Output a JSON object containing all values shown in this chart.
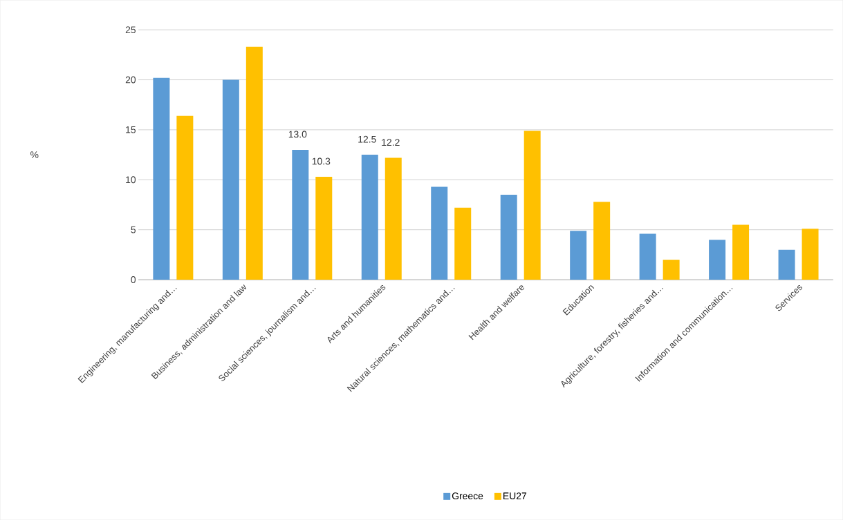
{
  "chart_data": {
    "type": "bar",
    "ylabel": "%",
    "categories": [
      "Engineering, manufacturing and…",
      "Business, administration and law",
      "Social sciences, journalism and…",
      "Arts and humanities",
      "Natural sciences, mathematics and…",
      "Health and welfare",
      "Education",
      "Agriculture, forestry, fisheries and…",
      "Information and communication…",
      "Services"
    ],
    "series": [
      {
        "name": "Greece",
        "color": "#5b9bd5",
        "values": [
          20.2,
          20.0,
          13.0,
          12.5,
          9.3,
          8.5,
          4.9,
          4.6,
          4.0,
          3.0
        ],
        "value_labels": [
          null,
          null,
          "13.0",
          "12.5",
          null,
          null,
          null,
          null,
          null,
          null
        ]
      },
      {
        "name": "EU27",
        "color": "#ffc000",
        "values": [
          16.4,
          23.3,
          10.3,
          12.2,
          7.2,
          14.9,
          7.8,
          2.0,
          5.5,
          5.1
        ],
        "value_labels": [
          null,
          null,
          "10.3",
          "12.2",
          null,
          null,
          null,
          null,
          null,
          null
        ]
      }
    ],
    "ylim": [
      0,
      25
    ],
    "yticks": [
      0,
      5,
      10,
      15,
      20,
      25
    ],
    "grid": "y",
    "legend": "bottom"
  }
}
